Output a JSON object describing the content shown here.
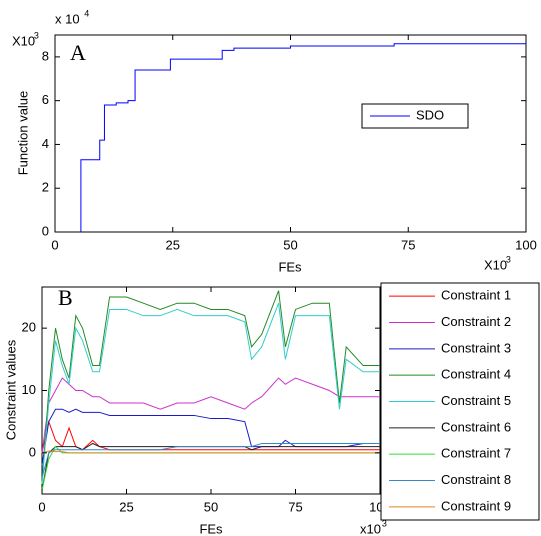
{
  "chart_data": [
    {
      "type": "line",
      "panel_label": "A",
      "xlabel": "FEs",
      "ylabel": "Function value",
      "x_multiplier": {
        "base": "X10",
        "exponent": "3"
      },
      "y_multiplier": {
        "base": "x 10",
        "exponent": "4"
      },
      "corner_multiplier": {
        "base": "X10",
        "exponent": "3"
      },
      "xlim": [
        0,
        100
      ],
      "xticks": [
        0,
        25,
        50,
        75,
        100
      ],
      "ylim": [
        0,
        9
      ],
      "yticks": [
        0,
        2,
        4,
        6,
        8
      ],
      "x": [
        5.5,
        5.5,
        9.5,
        9.5,
        10.5,
        10.5,
        13,
        13,
        15.5,
        15.5,
        17,
        17,
        24.5,
        24.5,
        35.5,
        35.5,
        38,
        38,
        50,
        50,
        72,
        72,
        100
      ],
      "series": [
        {
          "name": "SDO",
          "color": "#0000ff",
          "values": [
            0,
            3.3,
            3.3,
            4.2,
            4.2,
            5.8,
            5.8,
            5.9,
            5.9,
            6.0,
            6.0,
            7.4,
            7.4,
            7.9,
            7.9,
            8.3,
            8.3,
            8.4,
            8.4,
            8.5,
            8.5,
            8.6,
            8.6
          ]
        }
      ]
    },
    {
      "type": "line",
      "panel_label": "B",
      "xlabel": "FEs",
      "ylabel": "Constraint values",
      "x_multiplier": {
        "base": "x10",
        "exponent": "3"
      },
      "xlim": [
        0,
        100
      ],
      "xticks": [
        0,
        25,
        50,
        75,
        100
      ],
      "ylim": [
        -6.6,
        26.6
      ],
      "yticks": [
        0,
        10,
        20
      ],
      "x": [
        0,
        2,
        4,
        6,
        8,
        10,
        12,
        15,
        17,
        20,
        25,
        30,
        35,
        40,
        45,
        50,
        55,
        60,
        62,
        65,
        70,
        72,
        75,
        80,
        85,
        88,
        90,
        95,
        100
      ],
      "series": [
        {
          "name": "Constraint 1",
          "color": "#ff0000",
          "values": [
            0,
            5,
            2,
            1,
            4,
            1,
            0.5,
            2,
            1,
            0.5,
            0.5,
            0.5,
            0.5,
            0.5,
            0.5,
            0.5,
            0.5,
            0.5,
            0.5,
            0.5,
            0.5,
            0.5,
            0.5,
            0.5,
            0.5,
            0.5,
            0.5,
            0.5,
            0.5
          ]
        },
        {
          "name": "Constraint 2",
          "color": "#cc33cc",
          "values": [
            0,
            8,
            10,
            12,
            11,
            10,
            10,
            9,
            9,
            8,
            8,
            8,
            7,
            8,
            8,
            9,
            8,
            7,
            8,
            9,
            12,
            11,
            12,
            11,
            10,
            9,
            9,
            9,
            9
          ]
        },
        {
          "name": "Constraint 3",
          "color": "#1a1acc",
          "values": [
            -2,
            5,
            7,
            7,
            6.5,
            7,
            6.5,
            6.5,
            6.5,
            6,
            6,
            6,
            6,
            6,
            6,
            5.5,
            5.5,
            5,
            1,
            1,
            1,
            2,
            1,
            1,
            1,
            1,
            1,
            1.5,
            1.5
          ]
        },
        {
          "name": "Constraint 4",
          "color": "#228b22",
          "values": [
            -5,
            10,
            20,
            15,
            12,
            22,
            20,
            14,
            14,
            25,
            25,
            24,
            23,
            24,
            24,
            23,
            23,
            22,
            17,
            19,
            26,
            17,
            23,
            24,
            24,
            8,
            17,
            14,
            14
          ]
        },
        {
          "name": "Constraint 5",
          "color": "#33cccc",
          "values": [
            -5,
            8,
            18,
            14,
            11,
            20,
            18,
            13,
            13,
            23,
            23,
            22,
            22,
            23,
            22,
            22,
            22,
            21,
            15,
            17,
            24,
            15,
            22,
            22,
            22,
            7,
            15,
            13,
            13
          ]
        },
        {
          "name": "Constraint 6",
          "color": "#222222",
          "values": [
            -6,
            0,
            1,
            1,
            1,
            1,
            0.5,
            1.5,
            1,
            1,
            1,
            1,
            1,
            1,
            1,
            1,
            1,
            1,
            0.5,
            1,
            1,
            1,
            1,
            1,
            1,
            1,
            1,
            1,
            1
          ]
        },
        {
          "name": "Constraint 7",
          "color": "#33dd33",
          "values": [
            -6,
            -1,
            1,
            0,
            0,
            0,
            0,
            0,
            0,
            0,
            0,
            0,
            0,
            0,
            0,
            0,
            0,
            0,
            0,
            0,
            0,
            0,
            0,
            0,
            0,
            0,
            0,
            0,
            0
          ]
        },
        {
          "name": "Constraint 8",
          "color": "#3388cc",
          "values": [
            -4,
            0,
            0.5,
            0.5,
            0.5,
            0.5,
            0.5,
            0.5,
            0.5,
            0.5,
            0.5,
            0.5,
            0.5,
            1,
            1,
            1,
            1,
            1,
            1,
            1.5,
            1.5,
            1.5,
            1.5,
            1.5,
            1.5,
            1.5,
            1.5,
            1.5,
            1.5
          ]
        },
        {
          "name": "Constraint 9",
          "color": "#dd8822",
          "values": [
            0,
            0.3,
            0.2,
            0.2,
            0,
            0,
            0,
            0,
            0,
            0,
            0,
            0,
            0,
            0,
            0,
            0,
            0,
            0,
            0,
            0,
            0,
            0,
            0,
            0,
            0,
            0,
            0,
            0,
            0
          ]
        }
      ]
    }
  ]
}
